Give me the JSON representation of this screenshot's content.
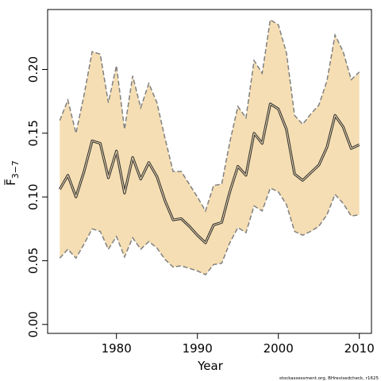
{
  "chart_data": {
    "type": "line",
    "title": "",
    "xlabel": "Year",
    "ylabel_main": "F",
    "ylabel_sub": "3−7",
    "xlim": [
      1971.5,
      2011.5
    ],
    "ylim": [
      -0.007,
      0.247
    ],
    "x_ticks": [
      1980,
      1990,
      2000,
      2010
    ],
    "y_ticks": [
      0.0,
      0.05,
      0.1,
      0.15,
      0.2
    ],
    "y_tick_labels": [
      "0.00",
      "0.05",
      "0.10",
      "0.15",
      "0.20"
    ],
    "grid": false,
    "legend": "none",
    "x": [
      1973,
      1974,
      1975,
      1976,
      1977,
      1978,
      1979,
      1980,
      1981,
      1982,
      1983,
      1984,
      1985,
      1986,
      1987,
      1988,
      1989,
      1990,
      1991,
      1992,
      1993,
      1994,
      1995,
      1996,
      1997,
      1998,
      1999,
      2000,
      2001,
      2002,
      2003,
      2004,
      2005,
      2006,
      2007,
      2008,
      2009,
      2010
    ],
    "series": [
      {
        "role": "estimate",
        "values": [
          0.106,
          0.117,
          0.1,
          0.12,
          0.144,
          0.142,
          0.115,
          0.136,
          0.103,
          0.131,
          0.114,
          0.127,
          0.116,
          0.097,
          0.082,
          0.083,
          0.077,
          0.07,
          0.064,
          0.078,
          0.08,
          0.104,
          0.124,
          0.117,
          0.15,
          0.142,
          0.173,
          0.169,
          0.153,
          0.118,
          0.113,
          0.119,
          0.125,
          0.139,
          0.164,
          0.155,
          0.138,
          0.141
        ]
      },
      {
        "role": "upper",
        "values": [
          0.16,
          0.176,
          0.15,
          0.18,
          0.214,
          0.212,
          0.174,
          0.203,
          0.153,
          0.195,
          0.17,
          0.189,
          0.174,
          0.146,
          0.12,
          0.12,
          0.11,
          0.1,
          0.089,
          0.109,
          0.11,
          0.143,
          0.171,
          0.162,
          0.207,
          0.197,
          0.239,
          0.235,
          0.213,
          0.164,
          0.157,
          0.165,
          0.172,
          0.191,
          0.227,
          0.214,
          0.192,
          0.198
        ]
      },
      {
        "role": "lower",
        "values": [
          0.052,
          0.059,
          0.052,
          0.063,
          0.075,
          0.073,
          0.059,
          0.069,
          0.053,
          0.068,
          0.059,
          0.065,
          0.06,
          0.051,
          0.045,
          0.046,
          0.044,
          0.042,
          0.039,
          0.047,
          0.048,
          0.064,
          0.076,
          0.072,
          0.093,
          0.089,
          0.107,
          0.104,
          0.094,
          0.073,
          0.07,
          0.073,
          0.077,
          0.086,
          0.102,
          0.095,
          0.085,
          0.086
        ]
      }
    ],
    "colors": {
      "band": "#f5deb3",
      "bound_line": "#808080",
      "estimate_outer": "#333333",
      "estimate_inner": "#f5deb3",
      "axis": "#000000"
    }
  },
  "source_note": "stockassessment.org, BHrevisedcheck, r1625"
}
